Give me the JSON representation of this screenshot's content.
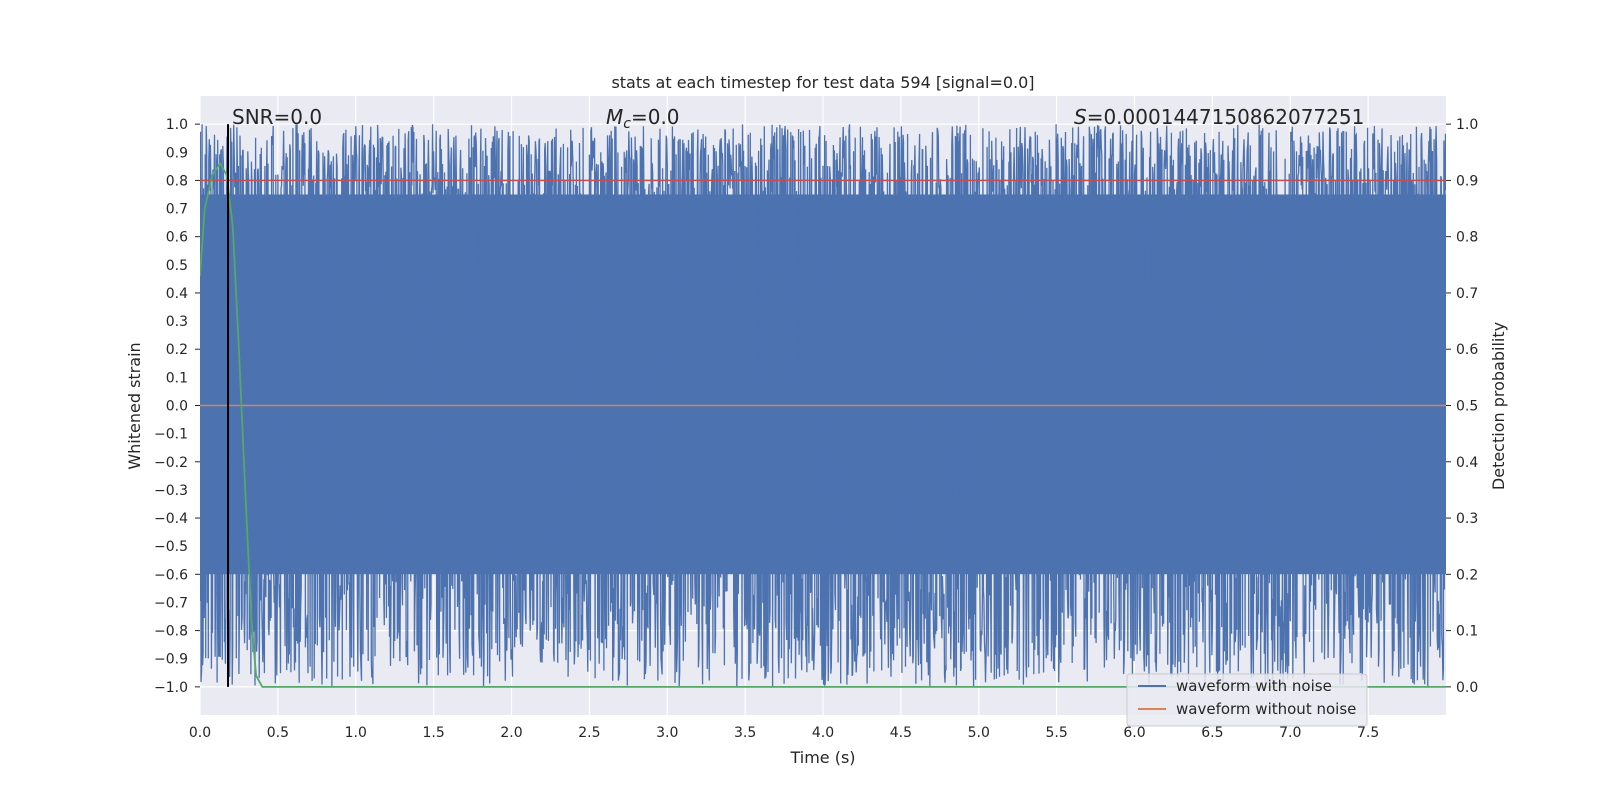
{
  "chart_data": {
    "type": "line",
    "title": "stats at each timestep for test data 594 [signal=0.0]",
    "xlabel": "Time (s)",
    "ylabel": "Whitened strain",
    "y2label": "Detection probability",
    "xlim": [
      0.0,
      8.0
    ],
    "ylim": [
      -1.1,
      1.1
    ],
    "y2lim": [
      -0.05,
      1.05
    ],
    "x_ticks": [
      "0.0",
      "0.5",
      "1.0",
      "1.5",
      "2.0",
      "2.5",
      "3.0",
      "3.5",
      "4.0",
      "4.5",
      "5.0",
      "5.5",
      "6.0",
      "6.5",
      "7.0",
      "7.5"
    ],
    "y_ticks": [
      "1.0",
      "0.9",
      "0.8",
      "0.7",
      "0.6",
      "0.5",
      "0.4",
      "0.3",
      "0.2",
      "0.1",
      "0.0",
      "−0.1",
      "−0.2",
      "−0.3",
      "−0.4",
      "−0.5",
      "−0.6",
      "−0.7",
      "−0.8",
      "−0.9",
      "−1.0"
    ],
    "y2_ticks": [
      "1.0",
      "0.9",
      "0.8",
      "0.7",
      "0.6",
      "0.5",
      "0.4",
      "0.3",
      "0.2",
      "0.1",
      "0.0"
    ],
    "grid": true,
    "legend_position": "lower-right",
    "annotations": {
      "snr": "SNR=0.0",
      "mc_symbol": "M",
      "mc_sub": "c",
      "mc_value": "=0.0",
      "s_symbol": "S",
      "s_value": "=0.0001447150862077251"
    },
    "series": [
      {
        "name": "waveform with noise",
        "color": "#4c72b0",
        "description_values": "dense noise spanning approximately -1.0 to 1.0 across 0 to 8 s"
      },
      {
        "name": "waveform without noise",
        "color": "#dd8452",
        "x": [
          0.0,
          8.0
        ],
        "y": [
          0.0,
          0.0
        ]
      },
      {
        "name": "",
        "color": "#c44e52",
        "axis": "right",
        "x": [
          0.0,
          8.0
        ],
        "y": [
          0.9,
          0.9
        ]
      },
      {
        "name": "",
        "color": "#55a868",
        "axis": "right",
        "x": [
          0.0,
          0.03,
          0.08,
          0.13,
          0.17,
          0.21,
          0.25,
          0.29,
          0.33,
          0.36,
          0.4,
          1.0,
          2.0,
          3.0,
          4.0,
          5.0,
          6.0,
          7.0,
          8.0
        ],
        "y": [
          0.73,
          0.85,
          0.91,
          0.93,
          0.91,
          0.82,
          0.6,
          0.35,
          0.12,
          0.02,
          0.0,
          0.0,
          0.0,
          0.0,
          0.0,
          0.0,
          0.0,
          0.0,
          0.0
        ]
      }
    ],
    "vertical_line_x": 0.18
  }
}
